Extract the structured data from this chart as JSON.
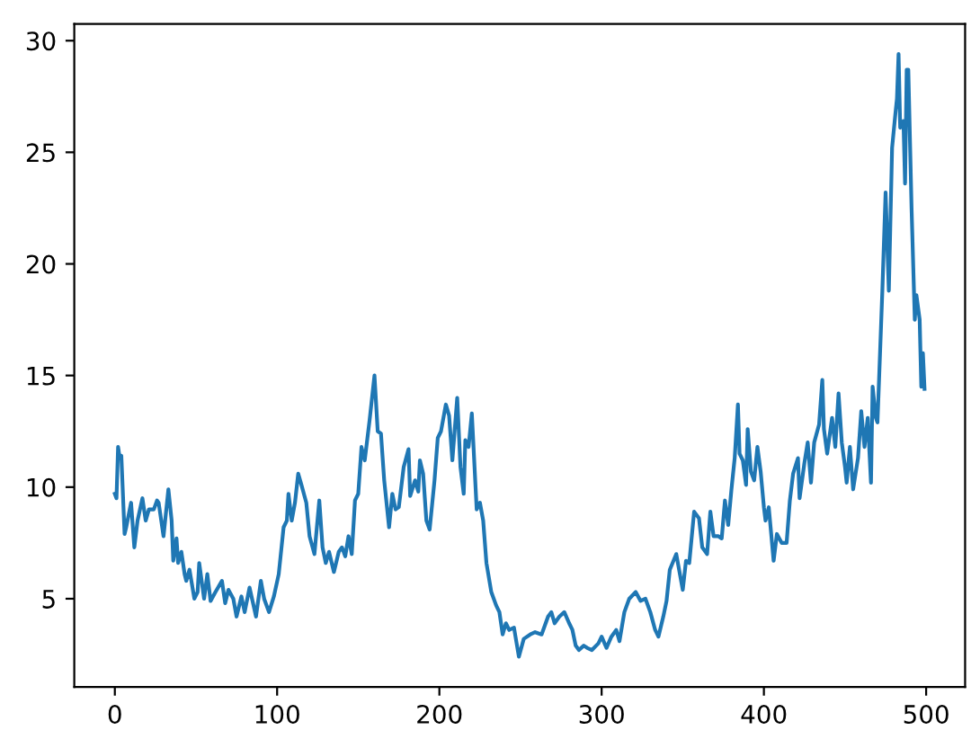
{
  "chart_data": {
    "type": "line",
    "x": [
      0,
      1,
      2,
      3,
      4,
      6,
      7,
      10,
      12,
      14,
      17,
      19,
      21,
      24,
      26,
      27,
      30,
      33,
      35,
      36,
      38,
      39,
      41,
      43,
      44,
      46,
      49,
      51,
      52,
      55,
      57,
      59,
      62,
      66,
      68,
      70,
      73,
      75,
      78,
      80,
      83,
      87,
      90,
      92,
      95,
      98,
      101,
      104,
      106,
      107,
      109,
      111,
      113,
      115,
      118,
      120,
      123,
      126,
      128,
      130,
      132,
      135,
      138,
      140,
      142,
      144,
      146,
      148,
      150,
      152,
      154,
      157,
      160,
      162,
      164,
      166,
      169,
      171,
      173,
      175,
      178,
      181,
      182,
      185,
      187,
      188,
      190,
      192,
      194,
      197,
      199,
      201,
      204,
      206,
      208,
      211,
      213,
      215,
      216,
      218,
      220,
      223,
      225,
      227,
      229,
      232,
      235,
      237,
      239,
      241,
      243,
      246,
      249,
      252,
      256,
      259,
      263,
      267,
      269,
      271,
      274,
      277,
      280,
      282,
      284,
      286,
      289,
      291,
      294,
      298,
      300,
      303,
      306,
      309,
      311,
      314,
      317,
      321,
      324,
      327,
      330,
      333,
      335,
      338,
      340,
      342,
      346,
      350,
      352,
      354,
      357,
      360,
      362,
      365,
      367,
      369,
      372,
      374,
      376,
      378,
      380,
      382,
      384,
      385,
      387,
      389,
      390,
      392,
      394,
      396,
      398,
      400,
      401,
      403,
      406,
      408,
      411,
      414,
      416,
      418,
      421,
      422,
      425,
      427,
      429,
      431,
      434,
      436,
      437,
      439,
      442,
      444,
      446,
      448,
      450,
      451,
      453,
      455,
      458,
      460,
      462,
      464,
      466,
      467,
      469,
      470,
      473,
      475,
      477,
      479,
      481,
      482,
      483,
      484,
      486,
      487,
      488,
      489,
      491,
      493,
      494,
      496,
      497,
      498,
      499
    ],
    "series": [
      {
        "color": "#1f77b4",
        "values": [
          9.7,
          9.5,
          11.8,
          11.3,
          11.4,
          7.9,
          8.2,
          9.3,
          7.3,
          8.5,
          9.5,
          8.5,
          9.0,
          9.0,
          9.4,
          9.3,
          7.8,
          9.9,
          8.5,
          6.7,
          7.7,
          6.6,
          7.1,
          6.1,
          5.8,
          6.3,
          5.0,
          5.3,
          6.6,
          5.0,
          6.1,
          4.9,
          5.3,
          5.8,
          4.8,
          5.4,
          5.0,
          4.2,
          5.1,
          4.4,
          5.5,
          4.2,
          5.8,
          5.0,
          4.4,
          5.1,
          6.1,
          8.2,
          8.5,
          9.7,
          8.5,
          9.3,
          10.6,
          10.1,
          9.3,
          7.8,
          7.0,
          9.4,
          7.3,
          6.6,
          7.1,
          6.2,
          7.1,
          7.3,
          6.9,
          7.8,
          7.0,
          9.4,
          9.7,
          11.8,
          11.2,
          13.0,
          15.0,
          12.5,
          12.4,
          10.3,
          8.2,
          9.7,
          9.0,
          9.1,
          10.9,
          11.7,
          9.6,
          10.3,
          9.8,
          11.2,
          10.6,
          8.5,
          8.1,
          10.3,
          12.2,
          12.5,
          13.7,
          13.2,
          11.2,
          14.0,
          10.9,
          9.7,
          12.1,
          11.8,
          13.3,
          9.0,
          9.3,
          8.5,
          6.6,
          5.3,
          4.7,
          4.4,
          3.4,
          3.9,
          3.6,
          3.7,
          2.4,
          3.2,
          3.4,
          3.5,
          3.4,
          4.2,
          4.4,
          3.9,
          4.2,
          4.4,
          3.9,
          3.6,
          2.9,
          2.7,
          2.9,
          2.8,
          2.7,
          3.0,
          3.3,
          2.8,
          3.3,
          3.6,
          3.1,
          4.4,
          5.0,
          5.3,
          4.9,
          5.0,
          4.4,
          3.6,
          3.3,
          4.2,
          4.9,
          6.3,
          7.0,
          5.4,
          6.7,
          6.6,
          8.9,
          8.6,
          7.3,
          7.0,
          8.9,
          7.8,
          7.8,
          7.7,
          9.4,
          8.3,
          9.9,
          11.3,
          13.7,
          11.5,
          11.2,
          10.1,
          12.6,
          10.7,
          10.3,
          11.8,
          10.7,
          9.1,
          8.5,
          9.1,
          6.7,
          7.9,
          7.5,
          7.5,
          9.4,
          10.6,
          11.3,
          9.5,
          11.1,
          12.0,
          10.2,
          12.0,
          12.8,
          14.8,
          12.6,
          11.5,
          13.1,
          11.8,
          14.2,
          12.0,
          10.9,
          10.2,
          11.8,
          9.9,
          11.3,
          13.4,
          11.8,
          13.1,
          10.2,
          14.5,
          13.1,
          12.9,
          18.8,
          23.2,
          18.8,
          25.2,
          26.7,
          27.4,
          29.4,
          26.1,
          26.4,
          23.6,
          28.7,
          28.7,
          22.5,
          17.5,
          18.6,
          17.5,
          14.5,
          16.0,
          14.4
        ]
      }
    ],
    "xlim": [
      -25,
      524
    ],
    "ylim": [
      1.05,
      30.75
    ],
    "xticks": [
      0,
      100,
      200,
      300,
      400,
      500
    ],
    "yticks": [
      5,
      10,
      15,
      20,
      25,
      30
    ]
  }
}
